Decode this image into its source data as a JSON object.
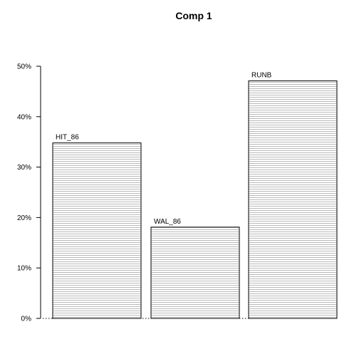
{
  "chart_data": {
    "type": "bar",
    "title": "Comp 1",
    "xlabel": "",
    "ylabel": "",
    "categories": [
      "HIT_86",
      "WAL_86",
      "RUNB"
    ],
    "values": [
      34.8,
      18.1,
      47.1
    ],
    "bar_labels": [
      "HIT_86",
      "WAL_86",
      "RUNB"
    ],
    "ylim": [
      0,
      50
    ],
    "y_ticks": [
      0,
      10,
      20,
      30,
      40,
      50
    ],
    "y_tick_labels": [
      "0%",
      "10%",
      "20%",
      "30%",
      "40%",
      "50%"
    ],
    "bar_fill": "hatched-horizontal",
    "grid": false,
    "legend": "none"
  },
  "colors": {
    "bar_stroke": "#000000",
    "hatch": "#9a9a9a",
    "text": "#000000",
    "background": "#ffffff"
  }
}
